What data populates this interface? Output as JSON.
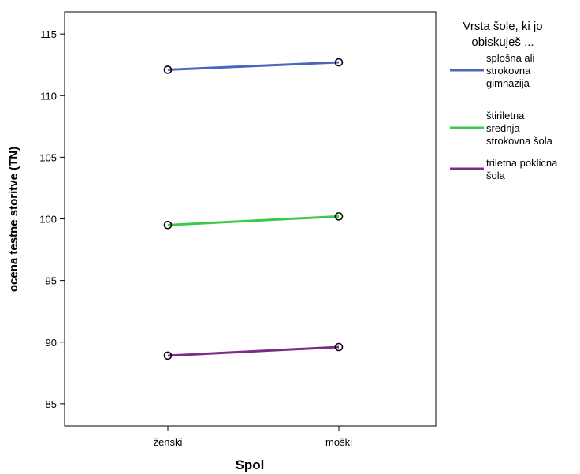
{
  "chart_data": {
    "type": "line",
    "categories": [
      "ženski",
      "moški"
    ],
    "series": [
      {
        "name": "splošna ali strokovna gimnazija",
        "values": [
          112.1,
          112.7
        ],
        "color": "#4a66c0"
      },
      {
        "name": "štiriletna srednja strokovna šola",
        "values": [
          99.5,
          100.2
        ],
        "color": "#3cc84a"
      },
      {
        "name": "triletna poklicna šola",
        "values": [
          88.9,
          89.6
        ],
        "color": "#7b2c87"
      }
    ],
    "xlabel": "Spol",
    "ylabel": "ocena testne storitve (TN)",
    "ylim": [
      83.2,
      116.8
    ],
    "yticks": [
      85,
      90,
      95,
      100,
      105,
      110,
      115
    ],
    "legend": {
      "title": [
        "Vrsta šole, ki jo",
        "obiskuješ ..."
      ],
      "entries": [
        [
          "splošna ali",
          "strokovna",
          "gimnazija"
        ],
        [
          "štiriletna",
          "srednja",
          "strokovna šola"
        ],
        [
          "triletna poklicna",
          "šola"
        ]
      ],
      "placement": "right"
    },
    "grid": false,
    "markers": "open-circle"
  }
}
